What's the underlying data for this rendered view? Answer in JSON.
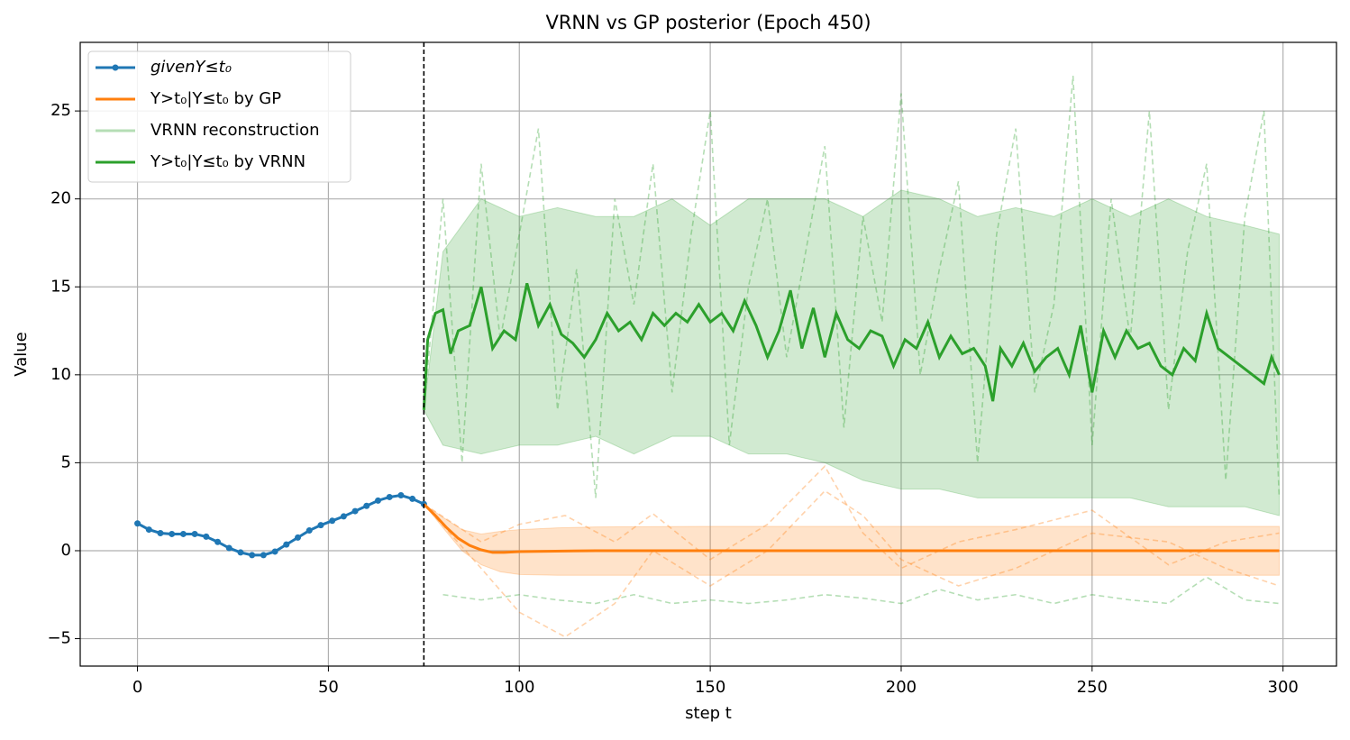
{
  "chart_data": {
    "type": "line",
    "title": "VRNN vs GP posterior (Epoch 450)",
    "x_label": "step t",
    "y_label": "Value",
    "xlim": [
      -15,
      314
    ],
    "ylim": [
      -6.56,
      28.9
    ],
    "xticks": [
      0,
      50,
      100,
      150,
      200,
      250,
      300
    ],
    "yticks": [
      {
        "value": -5,
        "label": "−5"
      },
      0,
      5,
      10,
      15,
      20,
      25
    ],
    "grid": true,
    "legend": "upper left",
    "vline": 75,
    "series": [
      {
        "name": "givenY≤t₀",
        "color": "#1f77b4",
        "marker": true,
        "x": [
          0,
          3,
          6,
          9,
          12,
          15,
          18,
          21,
          24,
          27,
          30,
          33,
          36,
          39,
          42,
          45,
          48,
          51,
          54,
          57,
          60,
          63,
          66,
          69,
          72,
          75
        ],
        "values": [
          1.55,
          1.2,
          1.0,
          0.95,
          0.95,
          0.95,
          0.8,
          0.5,
          0.15,
          -0.1,
          -0.25,
          -0.25,
          -0.05,
          0.35,
          0.75,
          1.15,
          1.45,
          1.7,
          1.95,
          2.25,
          2.55,
          2.85,
          3.05,
          3.15,
          2.95,
          2.65
        ]
      },
      {
        "name": "Y>t₀|Y≤t₀ by GP",
        "color": "#ff7f0e",
        "x": [
          75,
          78,
          81,
          84,
          87,
          90,
          93,
          96,
          100,
          120,
          150,
          200,
          250,
          299
        ],
        "values": [
          2.65,
          2.0,
          1.3,
          0.7,
          0.3,
          0.05,
          -0.1,
          -0.1,
          -0.05,
          0,
          0,
          0,
          0,
          0
        ]
      },
      {
        "name": "VRNN reconstruction",
        "color": "#2ca02c",
        "dashed": true,
        "alpha": 0.35,
        "x": [
          75,
          80,
          85,
          90,
          95,
          100,
          105,
          110,
          115,
          120,
          125,
          130,
          135,
          140,
          145,
          150,
          155,
          160,
          165,
          170,
          175,
          180,
          185,
          190,
          195,
          200,
          205,
          210,
          215,
          220,
          225,
          230,
          235,
          240,
          245,
          250,
          255,
          260,
          265,
          270,
          275,
          280,
          285,
          290,
          295,
          299
        ],
        "values": [
          8,
          20,
          5,
          22,
          12,
          18,
          24,
          8,
          16,
          3,
          20,
          14,
          22,
          9,
          18,
          25,
          6,
          15,
          20,
          11,
          17,
          23,
          7,
          19,
          13,
          26,
          10,
          16,
          21,
          5,
          18,
          24,
          9,
          14,
          27,
          6,
          20,
          12,
          25,
          8,
          17,
          22,
          4,
          19,
          25,
          3
        ]
      },
      {
        "name": "Y>t₀|Y≤t₀ by VRNN",
        "color": "#2ca02c",
        "x": [
          75,
          76,
          78,
          80,
          82,
          84,
          87,
          90,
          93,
          96,
          99,
          102,
          105,
          108,
          111,
          114,
          117,
          120,
          123,
          126,
          129,
          132,
          135,
          138,
          141,
          144,
          147,
          150,
          153,
          156,
          159,
          162,
          165,
          168,
          171,
          174,
          177,
          180,
          183,
          186,
          189,
          192,
          195,
          198,
          201,
          204,
          207,
          210,
          213,
          216,
          219,
          222,
          224,
          226,
          229,
          232,
          235,
          238,
          241,
          244,
          247,
          250,
          253,
          256,
          259,
          262,
          265,
          268,
          271,
          274,
          277,
          280,
          283,
          286,
          289,
          292,
          295,
          297,
          299
        ],
        "values": [
          8,
          12,
          13.5,
          13.7,
          11.2,
          12.5,
          12.8,
          15,
          11.5,
          12.5,
          12,
          15.2,
          12.8,
          14,
          12.3,
          11.8,
          11,
          12,
          13.5,
          12.5,
          13,
          12,
          13.5,
          12.8,
          13.5,
          13,
          14,
          13,
          13.5,
          12.5,
          14.2,
          12.8,
          11,
          12.5,
          14.8,
          11.5,
          13.8,
          11,
          13.5,
          12,
          11.5,
          12.5,
          12.2,
          10.5,
          12,
          11.5,
          13,
          11,
          12.2,
          11.2,
          11.5,
          10.5,
          8.5,
          11.5,
          10.5,
          11.8,
          10.2,
          11,
          11.5,
          10,
          12.8,
          9,
          12.5,
          11,
          12.5,
          11.5,
          11.8,
          10.5,
          10,
          11.5,
          10.8,
          13.5,
          11.5,
          11,
          10.5,
          10,
          9.5,
          11,
          10
        ]
      }
    ],
    "samples": [
      {
        "color": "#ff7f0e",
        "x": [
          75,
          90,
          100,
          112,
          125,
          135,
          150,
          165,
          180,
          190,
          200,
          215,
          230,
          250,
          270,
          285,
          299
        ],
        "values": [
          2.65,
          -1,
          -3.5,
          -4.9,
          -3,
          0,
          -2,
          0,
          3.4,
          2,
          -0.5,
          -2,
          -1,
          1,
          0.5,
          -1,
          -2
        ]
      },
      {
        "color": "#ff7f0e",
        "x": [
          75,
          90,
          100,
          112,
          125,
          135,
          150,
          165,
          180,
          190,
          200,
          215,
          230,
          250,
          270,
          285,
          299
        ],
        "values": [
          2.65,
          0.5,
          1.5,
          2,
          0.5,
          2.1,
          -0.5,
          1.5,
          4.8,
          1,
          -1,
          0.5,
          1.2,
          2.3,
          -0.8,
          0.5,
          1
        ]
      },
      {
        "color": "#2ca02c",
        "x": [
          80,
          90,
          100,
          110,
          120,
          130,
          140,
          150,
          160,
          170,
          180,
          190,
          200,
          210,
          220,
          230,
          240,
          250,
          260,
          270,
          280,
          290,
          299
        ],
        "values": [
          -2.5,
          -2.8,
          -2.5,
          -2.8,
          -3,
          -2.5,
          -3,
          -2.8,
          -3,
          -2.8,
          -2.5,
          -2.7,
          -3,
          -2.2,
          -2.8,
          -2.5,
          -3,
          -2.5,
          -2.8,
          -3,
          -1.5,
          -2.8,
          -3
        ]
      }
    ],
    "bands": [
      {
        "color": "#ff7f0e",
        "x": [
          75,
          80,
          85,
          90,
          95,
          100,
          110,
          120,
          150,
          200,
          250,
          299
        ],
        "upper": [
          2.65,
          1.9,
          1.2,
          0.95,
          1.1,
          1.2,
          1.3,
          1.35,
          1.38,
          1.38,
          1.38,
          1.38
        ],
        "lower": [
          2.65,
          1.3,
          0.0,
          -0.8,
          -1.2,
          -1.35,
          -1.4,
          -1.4,
          -1.4,
          -1.4,
          -1.4,
          -1.4
        ]
      },
      {
        "color": "#2ca02c",
        "x": [
          75,
          80,
          90,
          100,
          110,
          120,
          130,
          140,
          150,
          160,
          170,
          180,
          190,
          200,
          210,
          220,
          230,
          240,
          250,
          260,
          270,
          280,
          290,
          299
        ],
        "upper": [
          8,
          17,
          20,
          19,
          19.5,
          19,
          19,
          20,
          18.5,
          20,
          20,
          20,
          19,
          20.5,
          20,
          19,
          19.5,
          19,
          20,
          19,
          20,
          19,
          18.5,
          18
        ],
        "lower": [
          8,
          6,
          5.5,
          6,
          6,
          6.5,
          5.5,
          6.5,
          6.5,
          5.5,
          5.5,
          5,
          4,
          3.5,
          3.5,
          3,
          3,
          3,
          3,
          3,
          2.5,
          2.5,
          2.5,
          2
        ]
      }
    ]
  }
}
